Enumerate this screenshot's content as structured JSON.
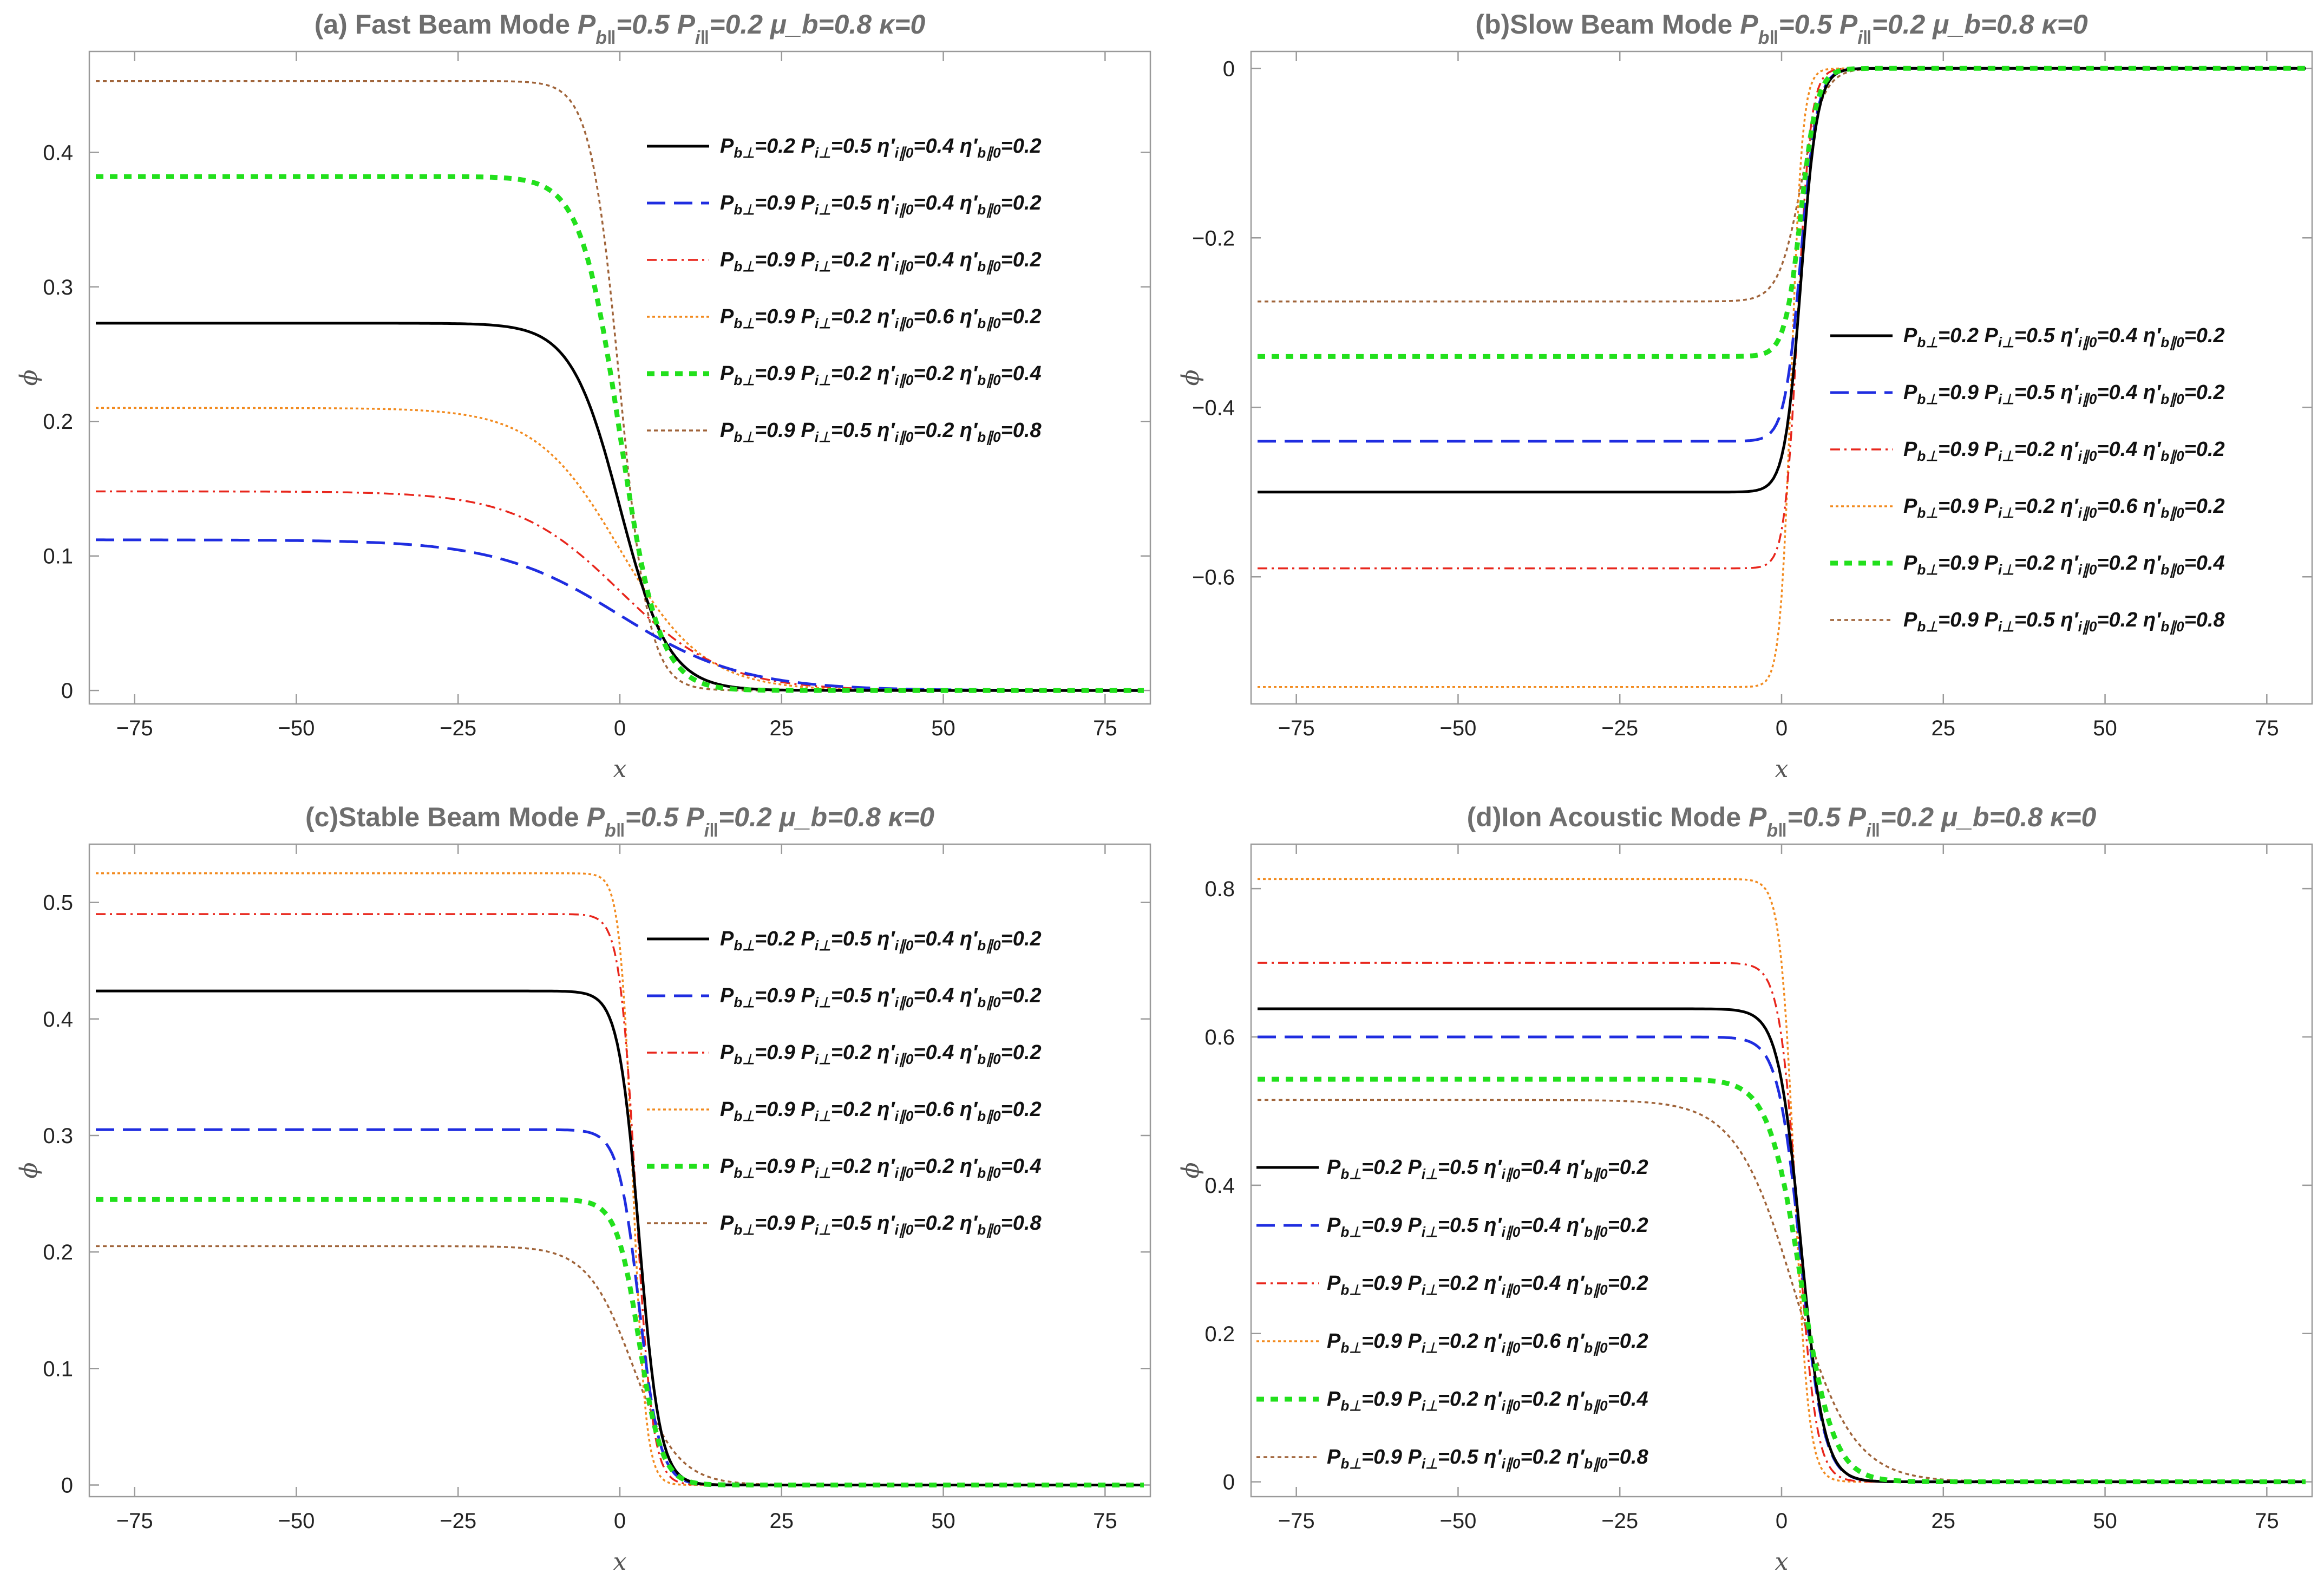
{
  "figure": {
    "legend_series_labels": [
      "Pb⊥=0.2 Pi⊥=0.5 η′i∥0=0.4 η′b∥0=0.2",
      "Pb⊥=0.9 Pi⊥=0.5 η′i∥0=0.4 η′b∥0=0.2",
      "Pb⊥=0.9 Pi⊥=0.2 η′i∥0=0.4 η′b∥0=0.2",
      "Pb⊥=0.9 Pi⊥=0.2 η′i∥0=0.6 η′b∥0=0.2",
      "Pb⊥=0.9 Pi⊥=0.2 η′i∥0=0.2 η′b∥0=0.4",
      "Pb⊥=0.9 Pi⊥=0.5 η′i∥0=0.2 η′b∥0=0.8"
    ]
  },
  "styles": {
    "colors": [
      "#000000",
      "#1f2de0",
      "#e8261c",
      "#f28a1e",
      "#22e01c",
      "#a0643a"
    ],
    "dashes": [
      "",
      "34,16",
      "18,8,4,8",
      "5,5",
      "14,12",
      "7,6"
    ],
    "widths": [
      5,
      5,
      3.5,
      3.5,
      9,
      3.5
    ]
  },
  "chart_data": [
    {
      "type": "line",
      "panel_label": "(a) Fast Beam Mode ",
      "params_text": "P_{b‖}=0.5 P_{i‖}=0.2 μ_b=0.8 κ=0",
      "xlabel": "x",
      "ylabel": "ϕ",
      "xlim": [
        -82,
        82
      ],
      "ylim": [
        -0.01,
        0.475
      ],
      "xticks": [
        -75,
        -50,
        -25,
        0,
        25,
        50,
        75
      ],
      "xtick_labels": [
        "−75",
        "−50",
        "−25",
        "0",
        "25",
        "50",
        "75"
      ],
      "yticks": [
        0,
        0.1,
        0.2,
        0.3,
        0.4
      ],
      "ytick_labels": [
        "0",
        "0.1",
        "0.2",
        "0.3",
        "0.4"
      ],
      "legend_position": "top-right",
      "series": [
        {
          "name": "Pb⊥=0.2 Pi⊥=0.5 η′i∥0=0.4 η′b∥0=0.2",
          "amplitude": 0.273,
          "center": 0,
          "width": 7.5
        },
        {
          "name": "Pb⊥=0.9 Pi⊥=0.5 η′i∥0=0.4 η′b∥0=0.2",
          "amplitude": 0.112,
          "center": 0,
          "width": 19
        },
        {
          "name": "Pb⊥=0.9 Pi⊥=0.2 η′i∥0=0.4 η′b∥0=0.2",
          "amplitude": 0.148,
          "center": 0,
          "width": 16
        },
        {
          "name": "Pb⊥=0.9 Pi⊥=0.2 η′i∥0=0.6 η′b∥0=0.2",
          "amplitude": 0.21,
          "center": 0,
          "width": 13
        },
        {
          "name": "Pb⊥=0.9 Pi⊥=0.2 η′i∥0=0.2 η′b∥0=0.4",
          "amplitude": 0.382,
          "center": 0,
          "width": 6
        },
        {
          "name": "Pb⊥=0.9 Pi⊥=0.5 η′i∥0=0.2 η′b∥0=0.8",
          "amplitude": 0.453,
          "center": 0,
          "width": 4.5
        }
      ]
    },
    {
      "type": "line",
      "panel_label": "(b)Slow Beam Mode ",
      "params_text": "P_{b‖}=0.5 P_{i‖}=0.2 μ_b=0.8 κ=0",
      "xlabel": "x",
      "ylabel": "ϕ",
      "xlim": [
        -82,
        82
      ],
      "ylim": [
        -0.75,
        0.02
      ],
      "xticks": [
        -75,
        -50,
        -25,
        0,
        25,
        50,
        75
      ],
      "xtick_labels": [
        "−75",
        "−50",
        "−25",
        "0",
        "25",
        "50",
        "75"
      ],
      "yticks": [
        0,
        -0.2,
        -0.4,
        -0.6
      ],
      "ytick_labels": [
        "0",
        "−0.2",
        "−0.4",
        "−0.6"
      ],
      "legend_position": "right",
      "series": [
        {
          "name": "Pb⊥=0.2 Pi⊥=0.5 η′i∥0=0.4 η′b∥0=0.2",
          "amplitude": -0.5,
          "center": 3,
          "width": 2.5
        },
        {
          "name": "Pb⊥=0.9 Pi⊥=0.5 η′i∥0=0.4 η′b∥0=0.2",
          "amplitude": -0.44,
          "center": 3,
          "width": 2.5
        },
        {
          "name": "Pb⊥=0.9 Pi⊥=0.2 η′i∥0=0.4 η′b∥0=0.2",
          "amplitude": -0.59,
          "center": 2.5,
          "width": 2
        },
        {
          "name": "Pb⊥=0.9 Pi⊥=0.2 η′i∥0=0.6 η′b∥0=0.2",
          "amplitude": -0.73,
          "center": 1.5,
          "width": 1.7
        },
        {
          "name": "Pb⊥=0.9 Pi⊥=0.2 η′i∥0=0.2 η′b∥0=0.4",
          "amplitude": -0.34,
          "center": 3,
          "width": 2.5
        },
        {
          "name": "Pb⊥=0.9 Pi⊥=0.5 η′i∥0=0.2 η′b∥0=0.8",
          "amplitude": -0.275,
          "center": 3,
          "width": 3.5
        }
      ]
    },
    {
      "type": "line",
      "panel_label": "(c)Stable Beam Mode ",
      "params_text": "P_{b‖}=0.5 P_{i‖}=0.2 μ_b=0.8 κ=0",
      "xlabel": "x",
      "ylabel": "ϕ",
      "xlim": [
        -82,
        82
      ],
      "ylim": [
        -0.01,
        0.55
      ],
      "xticks": [
        -75,
        -50,
        -25,
        0,
        25,
        50,
        75
      ],
      "xtick_labels": [
        "−75",
        "−50",
        "−25",
        "0",
        "25",
        "50",
        "75"
      ],
      "yticks": [
        0,
        0.1,
        0.2,
        0.3,
        0.4,
        0.5
      ],
      "ytick_labels": [
        "0",
        "0.1",
        "0.2",
        "0.3",
        "0.4",
        "0.5"
      ],
      "legend_position": "top-right",
      "series": [
        {
          "name": "Pb⊥=0.2 Pi⊥=0.5 η′i∥0=0.4 η′b∥0=0.2",
          "amplitude": 0.424,
          "center": 3,
          "width": 3.2
        },
        {
          "name": "Pb⊥=0.9 Pi⊥=0.5 η′i∥0=0.4 η′b∥0=0.2",
          "amplitude": 0.305,
          "center": 3,
          "width": 3.2
        },
        {
          "name": "Pb⊥=0.9 Pi⊥=0.2 η′i∥0=0.4 η′b∥0=0.2",
          "amplitude": 0.49,
          "center": 2.5,
          "width": 2.5
        },
        {
          "name": "Pb⊥=0.9 Pi⊥=0.2 η′i∥0=0.6 η′b∥0=0.2",
          "amplitude": 0.525,
          "center": 2,
          "width": 2
        },
        {
          "name": "Pb⊥=0.9 Pi⊥=0.2 η′i∥0=0.2 η′b∥0=0.4",
          "amplitude": 0.245,
          "center": 3,
          "width": 3.5
        },
        {
          "name": "Pb⊥=0.9 Pi⊥=0.5 η′i∥0=0.2 η′b∥0=0.8",
          "amplitude": 0.205,
          "center": 2,
          "width": 7
        }
      ]
    },
    {
      "type": "line",
      "panel_label": "(d)Ion Acoustic Mode ",
      "params_text": "P_{b‖}=0.5 P_{i‖}=0.2 μ_b=0.8 κ=0",
      "xlabel": "x",
      "ylabel": "ϕ",
      "xlim": [
        -82,
        82
      ],
      "ylim": [
        -0.02,
        0.86
      ],
      "xticks": [
        -75,
        -50,
        -25,
        0,
        25,
        50,
        75
      ],
      "xtick_labels": [
        "−75",
        "−50",
        "−25",
        "0",
        "25",
        "50",
        "75"
      ],
      "yticks": [
        0,
        0.2,
        0.4,
        0.6,
        0.8
      ],
      "ytick_labels": [
        "0",
        "0.2",
        "0.4",
        "0.6",
        "0.8"
      ],
      "legend_position": "bottom-left",
      "series": [
        {
          "name": "Pb⊥=0.2 Pi⊥=0.5 η′i∥0=0.4 η′b∥0=0.2",
          "amplitude": 0.638,
          "center": 3,
          "width": 3.5
        },
        {
          "name": "Pb⊥=0.9 Pi⊥=0.5 η′i∥0=0.4 η′b∥0=0.2",
          "amplitude": 0.6,
          "center": 3,
          "width": 3.5
        },
        {
          "name": "Pb⊥=0.9 Pi⊥=0.2 η′i∥0=0.4 η′b∥0=0.2",
          "amplitude": 0.7,
          "center": 2.5,
          "width": 2.8
        },
        {
          "name": "Pb⊥=0.9 Pi⊥=0.2 η′i∥0=0.6 η′b∥0=0.2",
          "amplitude": 0.813,
          "center": 2,
          "width": 2.2
        },
        {
          "name": "Pb⊥=0.9 Pi⊥=0.2 η′i∥0=0.2 η′b∥0=0.4",
          "amplitude": 0.543,
          "center": 3,
          "width": 5
        },
        {
          "name": "Pb⊥=0.9 Pi⊥=0.5 η′i∥0=0.2 η′b∥0=0.8",
          "amplitude": 0.515,
          "center": 2,
          "width": 9
        }
      ]
    }
  ]
}
